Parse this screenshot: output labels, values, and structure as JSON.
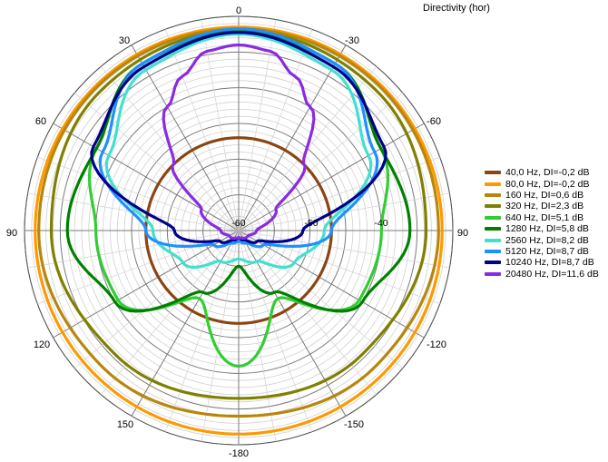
{
  "title": "Directivity (hor)",
  "chart_data": {
    "type": "polar",
    "title": "Directivity (hor)",
    "angle_tick_labels": [
      "0",
      "-30",
      "-60",
      "90",
      "-120",
      "-150",
      "-180",
      "150",
      "120",
      "90",
      "60",
      "30"
    ],
    "radial_tick_labels": [
      "-60",
      "-50",
      "-40"
    ],
    "radial_range": [
      -60,
      0
    ],
    "grid": true,
    "legend_position": "right",
    "series": [
      {
        "name": "40,0 Hz, DI=-0,2 dB",
        "color": "#8B4513",
        "angles": [
          0,
          90,
          180,
          270
        ],
        "values": [
          -34,
          -34,
          -34,
          -34
        ]
      },
      {
        "name": "80,0 Hz, DI=-0,2 dB",
        "color": "#FF9900",
        "angles": [
          0,
          90,
          180,
          270
        ],
        "values": [
          -3,
          -3,
          -3,
          -3
        ]
      },
      {
        "name": "160 Hz, DI=0,6 dB",
        "color": "#B8860B",
        "angles": [
          0,
          45,
          90,
          135,
          180,
          225,
          270,
          315
        ],
        "values": [
          -3.5,
          -3.5,
          -4,
          -6,
          -8,
          -6,
          -4,
          -3.5
        ]
      },
      {
        "name": "320 Hz, DI=2,3 dB",
        "color": "#808000",
        "angles": [
          0,
          45,
          90,
          135,
          180,
          225,
          270,
          315
        ],
        "values": [
          -4,
          -5,
          -7.5,
          -11,
          -13,
          -11,
          -7.5,
          -5
        ]
      },
      {
        "name": "640 Hz, DI=5,1 dB",
        "color": "#32CD32",
        "angles": [
          0,
          30,
          60,
          90,
          120,
          150,
          180,
          210,
          240,
          270,
          300,
          330
        ],
        "values": [
          -4,
          -6,
          -14,
          -20,
          -21,
          -38,
          -22,
          -38,
          -21,
          -20,
          -14,
          -6
        ]
      },
      {
        "name": "1280 Hz, DI=5,8 dB",
        "color": "#008000",
        "angles": [
          0,
          30,
          60,
          90,
          120,
          150,
          180,
          210,
          240,
          270,
          300,
          330
        ],
        "values": [
          -4,
          -6,
          -14,
          -12,
          -20,
          -40,
          -50,
          -40,
          -20,
          -12,
          -14,
          -6
        ]
      },
      {
        "name": "2560 Hz, DI=8,2 dB",
        "color": "#40E0D0",
        "angles": [
          0,
          30,
          60,
          90,
          120,
          150,
          180,
          210,
          240,
          270,
          300,
          330
        ],
        "values": [
          -5,
          -8,
          -18,
          -36,
          -42,
          -50,
          -52,
          -50,
          -42,
          -36,
          -18,
          -8
        ]
      },
      {
        "name": "5120 Hz, DI=8,7 dB",
        "color": "#1E90FF",
        "angles": [
          0,
          30,
          60,
          90,
          120,
          150,
          180,
          210,
          240,
          270,
          300,
          330
        ],
        "values": [
          -3.5,
          -6,
          -16,
          -34,
          -52,
          -56,
          -57,
          -56,
          -52,
          -34,
          -16,
          -6
        ]
      },
      {
        "name": "10240 Hz, DI=8,7 dB",
        "color": "#00008B",
        "angles": [
          0,
          30,
          60,
          90,
          120,
          150,
          180,
          210,
          240,
          270,
          300,
          330
        ],
        "values": [
          -4.5,
          -7,
          -13,
          -42,
          -54,
          -57,
          -58,
          -57,
          -54,
          -42,
          -13,
          -7
        ]
      },
      {
        "name": "20480 Hz, DI=11,6 dB",
        "color": "#8A2BE2",
        "angles": [
          0,
          10,
          20,
          30,
          45,
          60,
          90,
          120,
          180,
          240,
          270,
          300,
          315,
          330,
          340,
          350
        ],
        "values": [
          -8,
          -9,
          -14,
          -20,
          -34,
          -48,
          -55,
          -57,
          -58,
          -57,
          -55,
          -48,
          -34,
          -20,
          -14,
          -9
        ]
      }
    ]
  }
}
